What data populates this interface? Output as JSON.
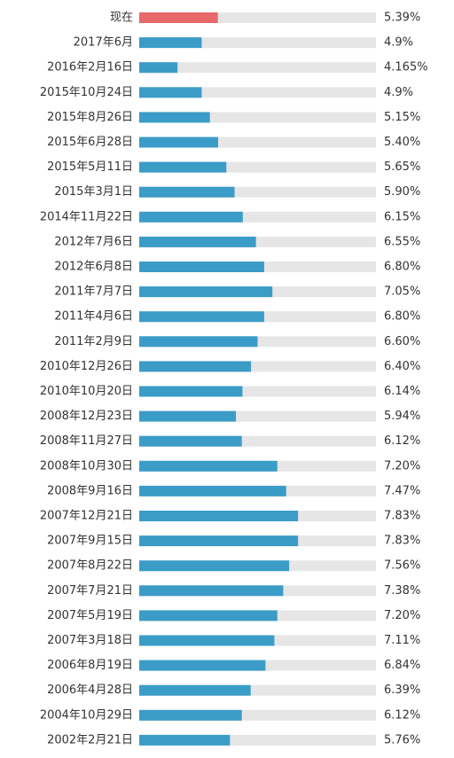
{
  "chart_data": {
    "type": "hbar",
    "categories": [
      "现在",
      "2017年6月",
      "2016年2月16日",
      "2015年10月24日",
      "2015年8月26日",
      "2015年6月28日",
      "2015年5月11日",
      "2015年3月1日",
      "2014年11月22日",
      "2012年7月6日",
      "2012年6月8日",
      "2011年7月7日",
      "2011年4月6日",
      "2011年2月9日",
      "2010年12月26日",
      "2010年10月20日",
      "2008年12月23日",
      "2008年11月27日",
      "2008年10月30日",
      "2008年9月16日",
      "2007年12月21日",
      "2007年9月15日",
      "2007年8月22日",
      "2007年7月21日",
      "2007年5月19日",
      "2007年3月18日",
      "2006年8月19日",
      "2006年4月28日",
      "2004年10月29日",
      "2002年2月21日"
    ],
    "values": [
      5.39,
      4.9,
      4.165,
      4.9,
      5.15,
      5.4,
      5.65,
      5.9,
      6.15,
      6.55,
      6.8,
      7.05,
      6.8,
      6.6,
      6.4,
      6.14,
      5.94,
      6.12,
      7.2,
      7.47,
      7.83,
      7.83,
      7.56,
      7.38,
      7.2,
      7.11,
      6.84,
      6.39,
      6.12,
      5.76
    ],
    "value_labels": [
      "5.39%",
      "4.9%",
      "4.165%",
      "4.9%",
      "5.15%",
      "5.40%",
      "5.65%",
      "5.90%",
      "6.15%",
      "6.55%",
      "6.80%",
      "7.05%",
      "6.80%",
      "6.60%",
      "6.40%",
      "6.14%",
      "5.94%",
      "6.12%",
      "7.20%",
      "7.47%",
      "7.83%",
      "7.83%",
      "7.56%",
      "7.38%",
      "7.20%",
      "7.11%",
      "6.84%",
      "6.39%",
      "6.12%",
      "5.76%"
    ],
    "colors": [
      "#e8696b",
      "#3b9cc7",
      "#3b9cc7",
      "#3b9cc7",
      "#3b9cc7",
      "#3b9cc7",
      "#3b9cc7",
      "#3b9cc7",
      "#3b9cc7",
      "#3b9cc7",
      "#3b9cc7",
      "#3b9cc7",
      "#3b9cc7",
      "#3b9cc7",
      "#3b9cc7",
      "#3b9cc7",
      "#3b9cc7",
      "#3b9cc7",
      "#3b9cc7",
      "#3b9cc7",
      "#3b9cc7",
      "#3b9cc7",
      "#3b9cc7",
      "#3b9cc7",
      "#3b9cc7",
      "#3b9cc7",
      "#3b9cc7",
      "#3b9cc7",
      "#3b9cc7",
      "#3b9cc7"
    ],
    "xlim": [
      3,
      10.2
    ]
  }
}
